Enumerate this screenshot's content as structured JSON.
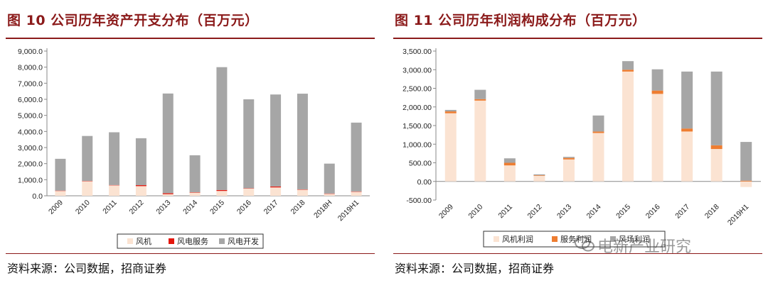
{
  "figures": [
    {
      "title": "图 10  公司历年资产开支分布（百万元）",
      "source": "资料来源：公司数据，招商证券",
      "chart_data": {
        "type": "bar",
        "stacked": true,
        "categories": [
          "2009",
          "2010",
          "2011",
          "2012",
          "2013",
          "2014",
          "2015",
          "2016",
          "2017",
          "2018",
          "2018H",
          "2019H1"
        ],
        "yticks": [
          "9,000.0",
          "8,000.0",
          "7,000.0",
          "6,000.0",
          "5,000.0",
          "4,000.0",
          "3,000.0",
          "2,000.0",
          "1,000.0",
          "0.0"
        ],
        "ylim": [
          0,
          9000
        ],
        "grid": false,
        "legend_position": "bottom",
        "series": [
          {
            "name": "风机",
            "color": "#FBE3D2",
            "values": [
              300,
              900,
              650,
              600,
              100,
              200,
              300,
              450,
              520,
              380,
              120,
              250
            ]
          },
          {
            "name": "风电服务",
            "color": "#E3160C",
            "values": [
              20,
              20,
              20,
              60,
              60,
              20,
              60,
              20,
              60,
              20,
              20,
              20
            ]
          },
          {
            "name": "风电开发",
            "color": "#A6A6A6",
            "values": [
              1980,
              2800,
              3280,
              2920,
              6200,
              2300,
              7640,
              5530,
              5720,
              5950,
              1860,
              4280
            ]
          }
        ]
      }
    },
    {
      "title": "图 11  公司历年利润构成分布（百万元）",
      "source": "资料来源：公司数据，招商证券",
      "chart_data": {
        "type": "bar",
        "stacked": true,
        "categories": [
          "2009",
          "2010",
          "2011",
          "2012",
          "2013",
          "2014",
          "2015",
          "2016",
          "2017",
          "2018",
          "2019H1"
        ],
        "yticks": [
          "3,500.00",
          "3,000.00",
          "2,500.00",
          "2,000.00",
          "1,500.00",
          "1,000.00",
          "500.00",
          "0.00",
          "-500.00"
        ],
        "ylim": [
          -500,
          3500
        ],
        "grid": false,
        "legend_position": "bottom",
        "series": [
          {
            "name": "风机利润",
            "color": "#FBE3D2",
            "values": [
              1830,
              2170,
              430,
              150,
              590,
              1300,
              2950,
              2350,
              1340,
              870,
              -150
            ]
          },
          {
            "name": "服务利润",
            "color": "#EE7D31",
            "values": [
              50,
              40,
              70,
              15,
              40,
              40,
              50,
              90,
              80,
              100,
              20
            ]
          },
          {
            "name": "风场利润",
            "color": "#A6A6A6",
            "values": [
              40,
              250,
              120,
              25,
              30,
              430,
              230,
              570,
              1530,
              1980,
              1040
            ]
          }
        ]
      }
    }
  ],
  "watermark": "电新产业研究"
}
